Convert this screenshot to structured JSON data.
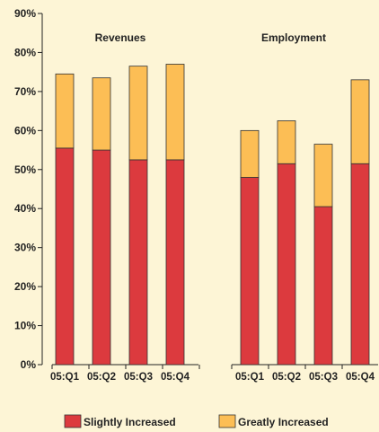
{
  "chart_data": {
    "type": "bar",
    "stacked": true,
    "ylim": [
      0,
      90
    ],
    "y_ticks": [
      "0%",
      "10%",
      "20%",
      "30%",
      "40%",
      "50%",
      "60%",
      "70%",
      "80%",
      "90%"
    ],
    "y_tick_values": [
      0,
      10,
      20,
      30,
      40,
      50,
      60,
      70,
      80,
      90
    ],
    "grid": false,
    "legend_position": "bottom",
    "groups": [
      {
        "title": "Revenues",
        "categories": [
          "05:Q1",
          "05:Q2",
          "05:Q3",
          "05:Q4"
        ],
        "series": [
          {
            "name": "Slightly Increased",
            "values": [
              55.5,
              55,
              52.5,
              52.5
            ]
          },
          {
            "name": "Greatly Increased",
            "values": [
              19,
              18.5,
              24,
              24.5
            ]
          }
        ]
      },
      {
        "title": "Employment",
        "categories": [
          "05:Q1",
          "05:Q2",
          "05:Q3",
          "05:Q4"
        ],
        "series": [
          {
            "name": "Slightly Increased",
            "values": [
              48,
              51.5,
              40.5,
              51.5
            ]
          },
          {
            "name": "Greatly Increased",
            "values": [
              12,
              11,
              16,
              21.5
            ]
          }
        ]
      }
    ],
    "legend": [
      {
        "name": "Slightly Increased",
        "color": "#dc3a3e"
      },
      {
        "name": "Greatly Increased",
        "color": "#fcbe55"
      }
    ]
  }
}
